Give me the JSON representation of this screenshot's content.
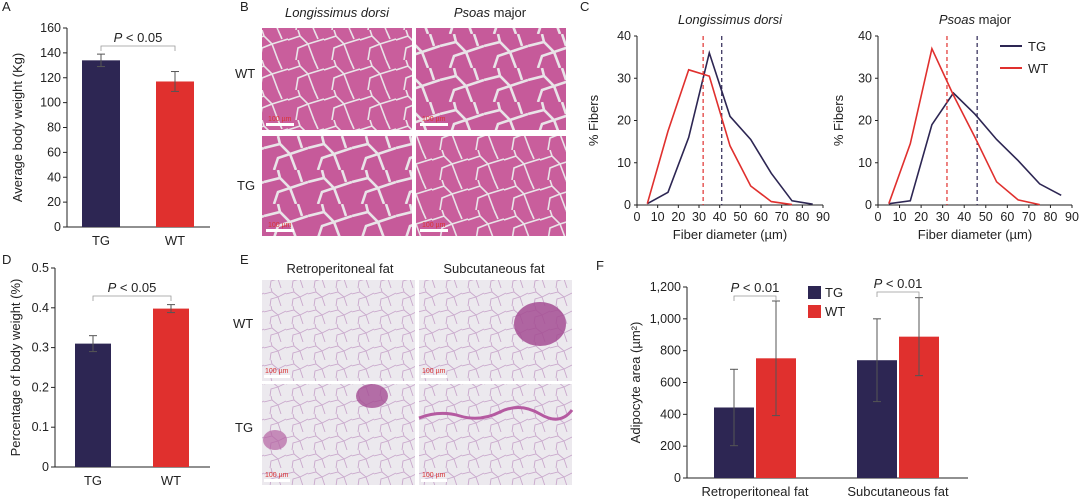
{
  "colors": {
    "tg": "#2d2653",
    "wt": "#e0302e",
    "stain_pink": "#c85a9a",
    "stain_bg": "#e6e2e6",
    "fat_bg": "#eae6ec"
  },
  "panel_letters": [
    "A",
    "B",
    "C",
    "D",
    "E",
    "F"
  ],
  "chart_data": [
    {
      "panel": "A",
      "type": "bar",
      "categories": [
        "TG",
        "WT"
      ],
      "values": [
        134,
        117
      ],
      "errors": [
        5,
        8
      ],
      "ylabel": "Average body weight (Kg)",
      "ylim": [
        0,
        160
      ],
      "yticks": [
        "0",
        "20",
        "40",
        "60",
        "80",
        "100",
        "120",
        "140",
        "160"
      ],
      "annotation": {
        "prefix": "P",
        "text": " < 0.05"
      }
    },
    {
      "panel": "C-left",
      "type": "line",
      "title": "Longissimus dorsi",
      "xlabel": "Fiber diameter (µm)",
      "ylabel": "% Fibers",
      "xlim": [
        0,
        90
      ],
      "ylim": [
        0,
        40
      ],
      "xticks": [
        "0",
        "10",
        "20",
        "30",
        "40",
        "50",
        "60",
        "70",
        "80",
        "90"
      ],
      "yticks": [
        "0",
        "10",
        "20",
        "30",
        "40"
      ],
      "series": [
        {
          "name": "TG",
          "x": [
            5,
            15,
            25,
            35,
            45,
            55,
            65,
            75,
            85
          ],
          "y": [
            0.3,
            3,
            16,
            36,
            21,
            15.5,
            7.5,
            1,
            0.2
          ],
          "mean_line": 41
        },
        {
          "name": "WT",
          "x": [
            5,
            15,
            25,
            35,
            45,
            55,
            65,
            75
          ],
          "y": [
            0.3,
            17.5,
            32,
            30.5,
            14,
            4.5,
            0.8,
            0.1
          ],
          "mean_line": 32
        }
      ]
    },
    {
      "panel": "C-right",
      "type": "line",
      "title": "Psoas major",
      "xlabel": "Fiber diameter (µm)",
      "ylabel": "% Fibers",
      "xlim": [
        0,
        90
      ],
      "ylim": [
        0,
        40
      ],
      "xticks": [
        "0",
        "10",
        "20",
        "30",
        "40",
        "50",
        "60",
        "70",
        "80",
        "90"
      ],
      "yticks": [
        "0",
        "10",
        "20",
        "30",
        "40"
      ],
      "legend": [
        "TG",
        "WT"
      ],
      "series": [
        {
          "name": "TG",
          "x": [
            5,
            15,
            25,
            35,
            45,
            55,
            65,
            75,
            85
          ],
          "y": [
            0.3,
            1,
            19,
            26.5,
            21.5,
            15.5,
            10.5,
            5,
            2.3
          ],
          "mean_line": 46
        },
        {
          "name": "WT",
          "x": [
            5,
            15,
            25,
            35,
            45,
            55,
            65,
            75
          ],
          "y": [
            0.3,
            14.5,
            37,
            26,
            16,
            5.5,
            1.2,
            0.1
          ],
          "mean_line": 32
        }
      ]
    },
    {
      "panel": "D",
      "type": "bar",
      "categories": [
        "TG",
        "WT"
      ],
      "values": [
        0.31,
        0.398
      ],
      "errors": [
        0.02,
        0.01
      ],
      "ylabel": "Percentage of body weight (%)",
      "ylim": [
        0,
        0.5
      ],
      "yticks": [
        "0",
        "0.1",
        "0.2",
        "0.3",
        "0.4",
        "0.5"
      ],
      "annotation": {
        "prefix": "P",
        "text": " < 0.05"
      }
    },
    {
      "panel": "F",
      "type": "bar",
      "categories": [
        "Retroperitoneal fat",
        "Subcutaneous fat"
      ],
      "series": [
        {
          "name": "TG",
          "values": [
            443,
            740
          ],
          "errors": [
            240,
            260
          ]
        },
        {
          "name": "WT",
          "values": [
            752,
            888
          ],
          "errors": [
            360,
            245
          ]
        }
      ],
      "ylabel": "Adipocyte area (µm²)",
      "ylim": [
        0,
        1200
      ],
      "yticks": [
        "0",
        "200",
        "400",
        "600",
        "800",
        "1,000",
        "1,200"
      ],
      "legend": [
        "TG",
        "WT"
      ],
      "annotations": [
        {
          "prefix": "P",
          "text": " < 0.01"
        },
        {
          "prefix": "P",
          "text": " < 0.01"
        }
      ]
    }
  ],
  "panel_b": {
    "col_headers": [
      "Longissimus dorsi",
      "Psoas major"
    ],
    "row_labels": [
      "WT",
      "TG"
    ],
    "scale_labels": [
      "100 µm",
      "100 µm",
      "100 µm",
      "100 µm"
    ]
  },
  "panel_e": {
    "col_headers": [
      "Retroperitoneal fat",
      "Subcutaneous fat"
    ],
    "row_labels": [
      "WT",
      "TG"
    ],
    "scale_labels": [
      "100 µm",
      "100 µm",
      "100 µm",
      "100 µm"
    ]
  }
}
